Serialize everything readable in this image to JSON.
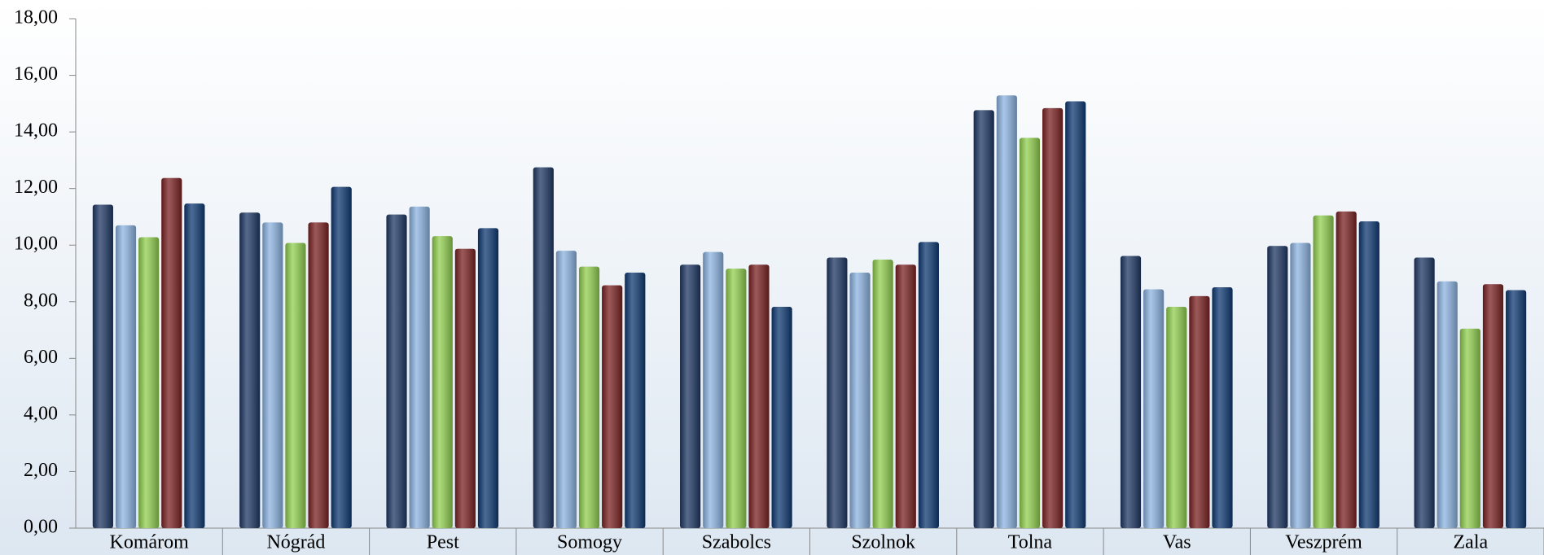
{
  "chart_data": {
    "type": "bar",
    "categories": [
      "Komárom",
      "Nógrád",
      "Pest",
      "Somogy",
      "Szabolcs",
      "Szolnok",
      "Tolna",
      "Vas",
      "Veszprém",
      "Zala"
    ],
    "series": [
      {
        "color": "#1f3864",
        "values": [
          11.43,
          11.15,
          11.08,
          12.75,
          9.31,
          9.56,
          14.77,
          9.62,
          9.97,
          9.56
        ]
      },
      {
        "color": "#8db4e2",
        "values": [
          10.7,
          10.8,
          11.36,
          9.8,
          9.76,
          9.03,
          15.29,
          8.44,
          10.08,
          8.72
        ]
      },
      {
        "color": "#92d050",
        "values": [
          10.28,
          10.08,
          10.32,
          9.24,
          9.17,
          9.49,
          13.79,
          7.82,
          11.05,
          7.05
        ]
      },
      {
        "color": "#7b2222",
        "values": [
          12.37,
          10.8,
          9.87,
          8.58,
          9.31,
          9.31,
          14.84,
          8.2,
          11.19,
          8.62
        ]
      },
      {
        "color": "#0f3a73",
        "values": [
          11.47,
          12.06,
          10.6,
          9.03,
          7.82,
          10.11,
          15.08,
          8.51,
          10.84,
          8.41
        ]
      }
    ],
    "ylim": [
      0,
      18
    ],
    "yticks": [
      {
        "value": 0,
        "label": "0,00"
      },
      {
        "value": 2,
        "label": "2,00"
      },
      {
        "value": 4,
        "label": "4,00"
      },
      {
        "value": 6,
        "label": "6,00"
      },
      {
        "value": 8,
        "label": "8,00"
      },
      {
        "value": 10,
        "label": "10,00"
      },
      {
        "value": 12,
        "label": "12,00"
      },
      {
        "value": 14,
        "label": "14,00"
      },
      {
        "value": 16,
        "label": "16,00"
      },
      {
        "value": 18,
        "label": "18,00"
      }
    ]
  }
}
